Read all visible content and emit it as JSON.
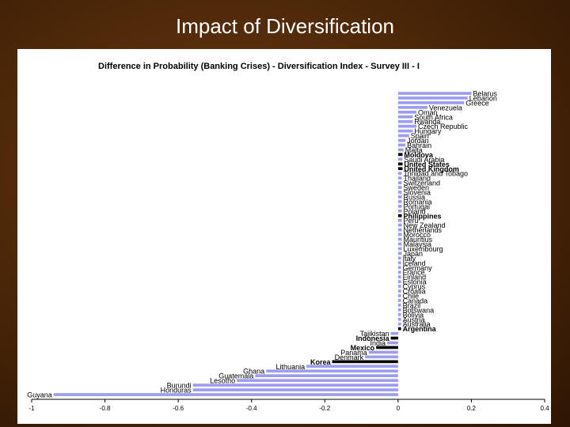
{
  "slide": {
    "title": "Impact of Diversification"
  },
  "colors": {
    "bar": "#9c9cf0",
    "bar_highlight": "#000000",
    "axis": "#000000"
  },
  "chart_data": {
    "type": "bar",
    "orientation": "horizontal",
    "title": "Difference in Probability (Banking Crises) - Diversification Index - Survey III - I",
    "xlabel": "",
    "ylabel": "",
    "xlim": [
      -1,
      0.4
    ],
    "xticks": [
      "-1",
      "-0.8",
      "-0.6",
      "-0.4",
      "-0.2",
      "0",
      "0.2",
      "0.4"
    ],
    "xtick_values": [
      -1,
      -0.8,
      -0.6,
      -0.4,
      -0.2,
      0,
      0.2,
      0.4
    ],
    "grid": false,
    "categories": [
      "Belarus",
      "Lebanon",
      "Greece",
      "Venezuela",
      "Oman",
      "South Africa",
      "Rwanda",
      "Czech Republic",
      "Hungary",
      "Spain",
      "Jordan",
      "Bahrain",
      "Malta",
      "Moldova",
      "Saudi Arabia",
      "United States",
      "United Kingdom",
      "Trinidad and Tobago",
      "Thailand",
      "Switzerland",
      "Sweden",
      "Slovenia",
      "Russia",
      "Romania",
      "Portugal",
      "Poland",
      "Philippines",
      "Peru",
      "New Zealand",
      "Netherlands",
      "Morocco",
      "Mauritius",
      "Malaysia",
      "Luxembourg",
      "Japan",
      "Italy",
      "Iceland",
      "Germany",
      "France",
      "Finland",
      "Estonia",
      "Cyprus",
      "Croatia",
      "Chile",
      "Canada",
      "Brazil",
      "Botswana",
      "Bolivia",
      "Austria",
      "Australia",
      "Argentina",
      "Tajikistan",
      "Indonesia",
      "India",
      "Mexico",
      "Panama",
      "Denmark",
      "Korea",
      "Lithuania",
      "Ghana",
      "Guatemala",
      "Lesotho",
      "Burundi",
      "Honduras",
      "Guyana"
    ],
    "values": [
      0.2,
      0.19,
      0.18,
      0.08,
      0.05,
      0.04,
      0.04,
      0.05,
      0.04,
      0.03,
      0.02,
      0.02,
      0.015,
      0.012,
      0.012,
      0.012,
      0.012,
      0.01,
      0.01,
      0.01,
      0.01,
      0.01,
      0.01,
      0.01,
      0.01,
      0.01,
      0.01,
      0.01,
      0.01,
      0.01,
      0.01,
      0.01,
      0.01,
      0.01,
      0.01,
      0.008,
      0.008,
      0.008,
      0.008,
      0.008,
      0.008,
      0.008,
      0.008,
      0.008,
      0.008,
      0.008,
      0.008,
      0.008,
      0.008,
      0.008,
      0.008,
      -0.02,
      -0.02,
      -0.03,
      -0.06,
      -0.08,
      -0.09,
      -0.18,
      -0.25,
      -0.36,
      -0.39,
      -0.44,
      -0.56,
      -0.56,
      -0.94
    ],
    "highlighted": [
      "Moldova",
      "United States",
      "United Kingdom",
      "Philippines",
      "Argentina",
      "Indonesia",
      "Mexico",
      "Korea"
    ]
  }
}
